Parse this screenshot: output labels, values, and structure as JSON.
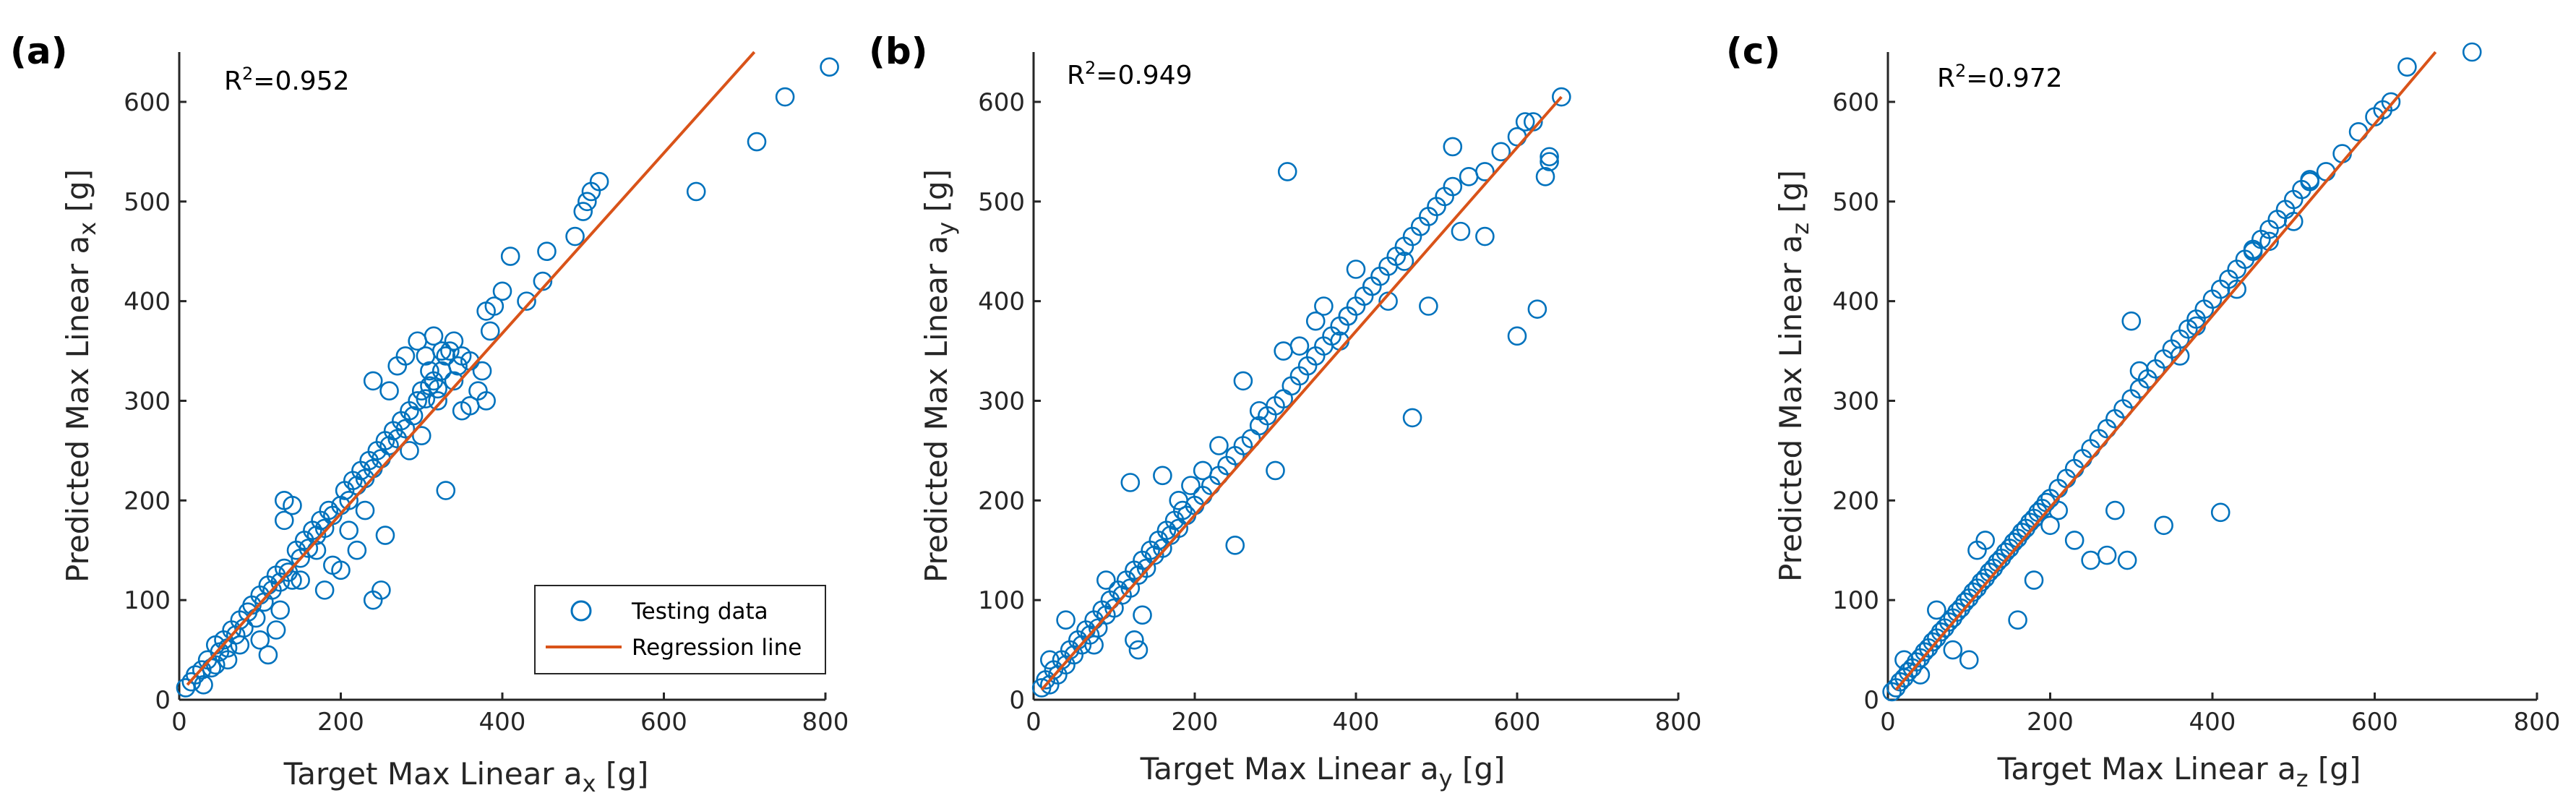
{
  "colors": {
    "points": "#0072BD",
    "regression": "#D95319",
    "axis": "#262626"
  },
  "legend": {
    "testing": "Testing data",
    "regression": "Regression line",
    "placement": "bottom-right of panel (a)"
  },
  "chart_data": [
    {
      "type": "scatter",
      "panel_label": "(a)",
      "r2_prefix": "R",
      "r2_sup": "2",
      "r2_value": "=0.952",
      "xlabel": {
        "main": "Target Max Linear a",
        "sub": "x",
        "unit": " [g]"
      },
      "ylabel": {
        "main": "Predicted Max Linear a",
        "sub": "x",
        "unit": " [g]"
      },
      "xlim": [
        0,
        800
      ],
      "ylim": [
        0,
        650
      ],
      "xticks": [
        0,
        200,
        400,
        600,
        800
      ],
      "yticks": [
        0,
        100,
        200,
        300,
        400,
        500,
        600
      ],
      "regression": [
        [
          10,
          15
        ],
        [
          712,
          650
        ]
      ],
      "points": [
        [
          8,
          12
        ],
        [
          15,
          18
        ],
        [
          20,
          25
        ],
        [
          28,
          30
        ],
        [
          35,
          40
        ],
        [
          40,
          32
        ],
        [
          45,
          55
        ],
        [
          50,
          48
        ],
        [
          55,
          60
        ],
        [
          60,
          52
        ],
        [
          65,
          70
        ],
        [
          70,
          65
        ],
        [
          75,
          80
        ],
        [
          80,
          72
        ],
        [
          85,
          88
        ],
        [
          90,
          95
        ],
        [
          95,
          82
        ],
        [
          100,
          105
        ],
        [
          105,
          98
        ],
        [
          110,
          115
        ],
        [
          115,
          110
        ],
        [
          120,
          125
        ],
        [
          125,
          118
        ],
        [
          130,
          132
        ],
        [
          135,
          128
        ],
        [
          140,
          120
        ],
        [
          145,
          150
        ],
        [
          150,
          142
        ],
        [
          155,
          160
        ],
        [
          160,
          152
        ],
        [
          165,
          170
        ],
        [
          170,
          165
        ],
        [
          175,
          180
        ],
        [
          180,
          172
        ],
        [
          185,
          190
        ],
        [
          190,
          185
        ],
        [
          200,
          195
        ],
        [
          205,
          210
        ],
        [
          210,
          200
        ],
        [
          215,
          220
        ],
        [
          220,
          215
        ],
        [
          225,
          230
        ],
        [
          230,
          222
        ],
        [
          235,
          240
        ],
        [
          240,
          232
        ],
        [
          245,
          250
        ],
        [
          250,
          242
        ],
        [
          255,
          260
        ],
        [
          260,
          255
        ],
        [
          265,
          270
        ],
        [
          270,
          262
        ],
        [
          275,
          280
        ],
        [
          280,
          272
        ],
        [
          285,
          290
        ],
        [
          290,
          285
        ],
        [
          295,
          300
        ],
        [
          300,
          310
        ],
        [
          305,
          302
        ],
        [
          310,
          315
        ],
        [
          315,
          320
        ],
        [
          320,
          312
        ],
        [
          325,
          330
        ],
        [
          330,
          345
        ],
        [
          335,
          350
        ],
        [
          340,
          360
        ],
        [
          345,
          335
        ],
        [
          350,
          345
        ],
        [
          360,
          340
        ],
        [
          370,
          310
        ],
        [
          375,
          330
        ],
        [
          380,
          390
        ],
        [
          385,
          370
        ],
        [
          390,
          395
        ],
        [
          400,
          410
        ],
        [
          410,
          445
        ],
        [
          430,
          400
        ],
        [
          450,
          420
        ],
        [
          455,
          450
        ],
        [
          490,
          465
        ],
        [
          500,
          490
        ],
        [
          505,
          500
        ],
        [
          510,
          510
        ],
        [
          520,
          520
        ],
        [
          30,
          15
        ],
        [
          45,
          35
        ],
        [
          60,
          40
        ],
        [
          75,
          55
        ],
        [
          100,
          60
        ],
        [
          110,
          45
        ],
        [
          120,
          70
        ],
        [
          125,
          90
        ],
        [
          130,
          200
        ],
        [
          140,
          195
        ],
        [
          130,
          180
        ],
        [
          150,
          120
        ],
        [
          170,
          150
        ],
        [
          180,
          110
        ],
        [
          190,
          135
        ],
        [
          200,
          130
        ],
        [
          210,
          170
        ],
        [
          220,
          150
        ],
        [
          230,
          190
        ],
        [
          240,
          100
        ],
        [
          250,
          110
        ],
        [
          255,
          165
        ],
        [
          240,
          320
        ],
        [
          260,
          310
        ],
        [
          270,
          335
        ],
        [
          285,
          250
        ],
        [
          300,
          265
        ],
        [
          310,
          330
        ],
        [
          320,
          300
        ],
        [
          330,
          210
        ],
        [
          340,
          320
        ],
        [
          350,
          290
        ],
        [
          360,
          295
        ],
        [
          380,
          300
        ],
        [
          280,
          345
        ],
        [
          295,
          360
        ],
        [
          305,
          345
        ],
        [
          315,
          365
        ],
        [
          325,
          350
        ],
        [
          640,
          510
        ],
        [
          715,
          560
        ],
        [
          750,
          605
        ],
        [
          805,
          635
        ]
      ]
    },
    {
      "type": "scatter",
      "panel_label": "(b)",
      "r2_prefix": "R",
      "r2_sup": "2",
      "r2_value": "=0.949",
      "xlabel": {
        "main": "Target Max Linear a",
        "sub": "y",
        "unit": " [g]"
      },
      "ylabel": {
        "main": "Predicted Max Linear a",
        "sub": "y",
        "unit": " [g]"
      },
      "xlim": [
        0,
        800
      ],
      "ylim": [
        0,
        650
      ],
      "xticks": [
        0,
        200,
        400,
        600,
        800
      ],
      "yticks": [
        0,
        100,
        200,
        300,
        400,
        500,
        600
      ],
      "regression": [
        [
          10,
          10
        ],
        [
          655,
          605
        ]
      ],
      "points": [
        [
          10,
          12
        ],
        [
          15,
          20
        ],
        [
          20,
          15
        ],
        [
          25,
          30
        ],
        [
          30,
          25
        ],
        [
          35,
          40
        ],
        [
          40,
          35
        ],
        [
          45,
          50
        ],
        [
          50,
          45
        ],
        [
          55,
          60
        ],
        [
          60,
          55
        ],
        [
          65,
          70
        ],
        [
          70,
          65
        ],
        [
          75,
          80
        ],
        [
          80,
          72
        ],
        [
          85,
          90
        ],
        [
          90,
          85
        ],
        [
          95,
          100
        ],
        [
          100,
          92
        ],
        [
          105,
          110
        ],
        [
          110,
          105
        ],
        [
          115,
          120
        ],
        [
          120,
          112
        ],
        [
          125,
          130
        ],
        [
          130,
          125
        ],
        [
          135,
          140
        ],
        [
          140,
          132
        ],
        [
          145,
          150
        ],
        [
          150,
          145
        ],
        [
          155,
          160
        ],
        [
          160,
          152
        ],
        [
          165,
          170
        ],
        [
          170,
          165
        ],
        [
          175,
          180
        ],
        [
          180,
          172
        ],
        [
          185,
          190
        ],
        [
          190,
          185
        ],
        [
          200,
          195
        ],
        [
          210,
          205
        ],
        [
          220,
          215
        ],
        [
          230,
          225
        ],
        [
          240,
          235
        ],
        [
          250,
          245
        ],
        [
          260,
          255
        ],
        [
          270,
          262
        ],
        [
          280,
          275
        ],
        [
          290,
          285
        ],
        [
          300,
          295
        ],
        [
          310,
          302
        ],
        [
          320,
          315
        ],
        [
          330,
          325
        ],
        [
          340,
          335
        ],
        [
          350,
          345
        ],
        [
          360,
          355
        ],
        [
          370,
          365
        ],
        [
          380,
          375
        ],
        [
          390,
          385
        ],
        [
          400,
          395
        ],
        [
          410,
          405
        ],
        [
          420,
          415
        ],
        [
          430,
          425
        ],
        [
          440,
          435
        ],
        [
          450,
          445
        ],
        [
          460,
          455
        ],
        [
          470,
          465
        ],
        [
          480,
          475
        ],
        [
          490,
          485
        ],
        [
          500,
          495
        ],
        [
          510,
          505
        ],
        [
          520,
          515
        ],
        [
          540,
          525
        ],
        [
          560,
          530
        ],
        [
          580,
          550
        ],
        [
          600,
          565
        ],
        [
          620,
          580
        ],
        [
          640,
          545
        ],
        [
          655,
          605
        ],
        [
          20,
          40
        ],
        [
          40,
          80
        ],
        [
          75,
          55
        ],
        [
          90,
          120
        ],
        [
          125,
          60
        ],
        [
          130,
          50
        ],
        [
          135,
          85
        ],
        [
          120,
          218
        ],
        [
          160,
          225
        ],
        [
          180,
          200
        ],
        [
          195,
          215
        ],
        [
          210,
          230
        ],
        [
          230,
          255
        ],
        [
          250,
          155
        ],
        [
          260,
          320
        ],
        [
          280,
          290
        ],
        [
          300,
          230
        ],
        [
          310,
          350
        ],
        [
          315,
          530
        ],
        [
          330,
          355
        ],
        [
          350,
          380
        ],
        [
          360,
          395
        ],
        [
          380,
          360
        ],
        [
          390,
          385
        ],
        [
          400,
          432
        ],
        [
          420,
          415
        ],
        [
          440,
          400
        ],
        [
          460,
          440
        ],
        [
          470,
          283
        ],
        [
          490,
          395
        ],
        [
          520,
          555
        ],
        [
          530,
          470
        ],
        [
          560,
          465
        ],
        [
          600,
          365
        ],
        [
          610,
          580
        ],
        [
          625,
          392
        ],
        [
          635,
          525
        ],
        [
          640,
          540
        ]
      ]
    },
    {
      "type": "scatter",
      "panel_label": "(c)",
      "r2_prefix": "R",
      "r2_sup": "2",
      "r2_value": "=0.972",
      "xlabel": {
        "main": "Target Max Linear a",
        "sub": "z",
        "unit": " [g]"
      },
      "ylabel": {
        "main": "Predicted Max Linear a",
        "sub": "z",
        "unit": " [g]"
      },
      "xlim": [
        0,
        800
      ],
      "ylim": [
        0,
        650
      ],
      "xticks": [
        0,
        200,
        400,
        600,
        800
      ],
      "yticks": [
        0,
        100,
        200,
        300,
        400,
        500,
        600
      ],
      "regression": [
        [
          10,
          10
        ],
        [
          675,
          650
        ]
      ],
      "points": [
        [
          5,
          8
        ],
        [
          10,
          12
        ],
        [
          15,
          18
        ],
        [
          20,
          22
        ],
        [
          25,
          28
        ],
        [
          30,
          32
        ],
        [
          35,
          38
        ],
        [
          40,
          42
        ],
        [
          45,
          48
        ],
        [
          50,
          52
        ],
        [
          55,
          58
        ],
        [
          60,
          62
        ],
        [
          65,
          68
        ],
        [
          70,
          72
        ],
        [
          75,
          78
        ],
        [
          80,
          82
        ],
        [
          85,
          88
        ],
        [
          90,
          92
        ],
        [
          95,
          98
        ],
        [
          100,
          102
        ],
        [
          105,
          108
        ],
        [
          110,
          112
        ],
        [
          115,
          118
        ],
        [
          120,
          122
        ],
        [
          125,
          128
        ],
        [
          130,
          132
        ],
        [
          135,
          138
        ],
        [
          140,
          142
        ],
        [
          145,
          148
        ],
        [
          150,
          152
        ],
        [
          155,
          158
        ],
        [
          160,
          162
        ],
        [
          165,
          168
        ],
        [
          170,
          172
        ],
        [
          175,
          178
        ],
        [
          180,
          182
        ],
        [
          185,
          188
        ],
        [
          190,
          192
        ],
        [
          195,
          198
        ],
        [
          200,
          202
        ],
        [
          210,
          212
        ],
        [
          220,
          222
        ],
        [
          230,
          232
        ],
        [
          240,
          242
        ],
        [
          250,
          252
        ],
        [
          260,
          262
        ],
        [
          270,
          272
        ],
        [
          280,
          282
        ],
        [
          290,
          292
        ],
        [
          300,
          302
        ],
        [
          310,
          312
        ],
        [
          320,
          322
        ],
        [
          330,
          332
        ],
        [
          340,
          342
        ],
        [
          350,
          352
        ],
        [
          360,
          362
        ],
        [
          370,
          372
        ],
        [
          380,
          382
        ],
        [
          390,
          392
        ],
        [
          400,
          402
        ],
        [
          410,
          412
        ],
        [
          420,
          422
        ],
        [
          430,
          432
        ],
        [
          440,
          442
        ],
        [
          450,
          452
        ],
        [
          460,
          462
        ],
        [
          470,
          472
        ],
        [
          480,
          482
        ],
        [
          490,
          492
        ],
        [
          500,
          502
        ],
        [
          510,
          512
        ],
        [
          520,
          522
        ],
        [
          540,
          530
        ],
        [
          560,
          548
        ],
        [
          580,
          570
        ],
        [
          600,
          585
        ],
        [
          610,
          592
        ],
        [
          620,
          600
        ],
        [
          640,
          635
        ],
        [
          720,
          650
        ],
        [
          20,
          40
        ],
        [
          40,
          25
        ],
        [
          60,
          90
        ],
        [
          80,
          50
        ],
        [
          100,
          40
        ],
        [
          110,
          150
        ],
        [
          120,
          160
        ],
        [
          160,
          80
        ],
        [
          180,
          120
        ],
        [
          200,
          175
        ],
        [
          210,
          190
        ],
        [
          230,
          160
        ],
        [
          250,
          140
        ],
        [
          270,
          145
        ],
        [
          280,
          190
        ],
        [
          295,
          140
        ],
        [
          300,
          380
        ],
        [
          310,
          330
        ],
        [
          340,
          175
        ],
        [
          360,
          345
        ],
        [
          380,
          375
        ],
        [
          410,
          188
        ],
        [
          430,
          412
        ],
        [
          450,
          450
        ],
        [
          470,
          460
        ],
        [
          500,
          480
        ],
        [
          520,
          520
        ]
      ]
    }
  ]
}
